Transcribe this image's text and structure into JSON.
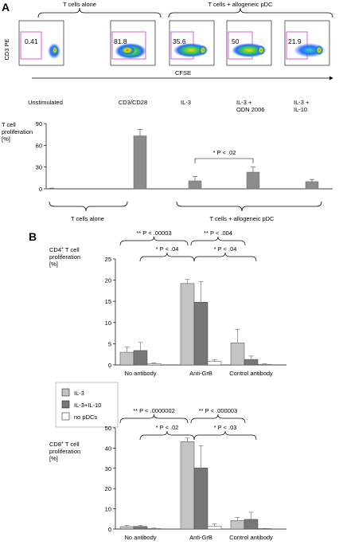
{
  "panelA": {
    "label": "A",
    "flow": {
      "group_left": "T cells alone",
      "group_right": "T cells + allogeneic pDC",
      "y_axis": "CD3 PE",
      "x_axis": "CFSE",
      "gate_values": [
        "0.41",
        "81.8",
        "35.6",
        "50",
        "21.9"
      ]
    },
    "conditions": [
      "Unstimulated",
      "CD3/CD28",
      "IL-3",
      "IL-3 +\nODN 2006",
      "IL-3 +\nIL-10"
    ],
    "ylabel": "T cell\nproliferation\n[%]",
    "significance": "* P < .02",
    "bracket_left": "T cells alone",
    "bracket_right": "T cells + allogeneic pDC"
  },
  "panelB": {
    "label": "B",
    "legend": [
      "IL-3",
      "IL-3+IL-10",
      "no pDCs"
    ],
    "groups": [
      "No antibody",
      "Anti-GrB",
      "Control antibody"
    ]
  },
  "chart_data": [
    {
      "type": "bar",
      "title": "",
      "ylabel": "T cell proliferation [%]",
      "categories": [
        "Unstimulated",
        "CD3/CD28",
        "IL-3",
        "IL-3 + ODN 2006",
        "IL-3 + IL-10"
      ],
      "values": [
        0.5,
        73,
        11,
        23,
        10
      ],
      "errors": [
        0.5,
        9,
        6,
        7,
        3
      ],
      "ylim": [
        0,
        90
      ],
      "yticks": [
        0,
        30,
        60,
        90
      ],
      "color": "#8c8c8c"
    },
    {
      "type": "bar",
      "ylabel": "CD4+ T cell proliferation [%]",
      "categories": [
        "No antibody",
        "Anti-GrB",
        "Control antibody"
      ],
      "series": [
        {
          "name": "IL-3",
          "values": [
            3,
            19.2,
            5.2
          ],
          "errors": [
            1.2,
            1.0,
            3.2
          ],
          "color": "#c4c4c4"
        },
        {
          "name": "IL-3+IL-10",
          "values": [
            3.4,
            14.8,
            1.3
          ],
          "errors": [
            1.9,
            4.8,
            0.8
          ],
          "color": "#777777"
        },
        {
          "name": "no pDCs",
          "values": [
            0.3,
            0.8,
            0.15
          ],
          "errors": [
            0.2,
            0.4,
            0.1
          ],
          "color": "#ffffff"
        }
      ],
      "ylim": [
        0,
        25
      ],
      "yticks": [
        0,
        5,
        10,
        15,
        20,
        25
      ],
      "annotations": [
        "** P < .00003",
        "* P < .04",
        "** P < .004",
        "* P < .04"
      ]
    },
    {
      "type": "bar",
      "ylabel": "CD8+ T cell proliferation [%]",
      "categories": [
        "No antibody",
        "Anti-GrB",
        "Control antibody"
      ],
      "series": [
        {
          "name": "IL-3",
          "values": [
            1.2,
            43.2,
            4.2
          ],
          "errors": [
            0.6,
            1.8,
            1.5
          ],
          "color": "#c4c4c4"
        },
        {
          "name": "IL-3+IL-10",
          "values": [
            1.3,
            30.2,
            4.8
          ],
          "errors": [
            0.5,
            11.0,
            3.5
          ],
          "color": "#777777"
        },
        {
          "name": "no pDCs",
          "values": [
            0.3,
            1.5,
            0.2
          ],
          "errors": [
            0.2,
            1.0,
            0.1
          ],
          "color": "#ffffff"
        }
      ],
      "ylim": [
        0,
        50
      ],
      "yticks": [
        0,
        10,
        20,
        30,
        40,
        50
      ],
      "annotations": [
        "** P < .0000002",
        "* P < .02",
        "** P < .000003",
        "* P < .03"
      ]
    }
  ]
}
